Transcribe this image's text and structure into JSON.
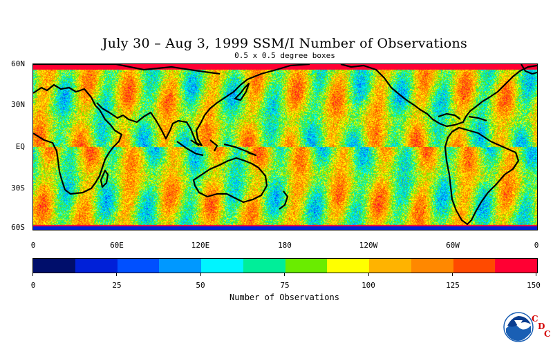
{
  "title": "July 30 – Aug 3, 1999 SSM/I Number of Observations",
  "subtitle": "0.5 x 0.5 degree boxes",
  "lat_labels": [
    "60N",
    "30N",
    "EQ",
    "30S",
    "60S"
  ],
  "lon_labels": [
    "0",
    "60E",
    "120E",
    "180",
    "120W",
    "60W",
    "0"
  ],
  "colorbar": {
    "title": "Number of Observations",
    "labels": [
      "0",
      "25",
      "50",
      "75",
      "100",
      "125",
      "150"
    ],
    "colors": [
      "#000e6b",
      "#0020d8",
      "#0050ff",
      "#0098ff",
      "#00f4ff",
      "#00ee99",
      "#6aec00",
      "#ffff00",
      "#ffb300",
      "#ff8800",
      "#ff4a00",
      "#ff0033"
    ]
  },
  "logo": {
    "name": "NOAA",
    "letters": [
      "C",
      "D",
      "C"
    ]
  },
  "chart_data": {
    "type": "heatmap",
    "title": "July 30 – Aug 3, 1999 SSM/I Number of Observations",
    "subtitle": "0.5 x 0.5 degree boxes",
    "xlabel": "",
    "ylabel": "",
    "x_ticks": [
      "0",
      "60E",
      "120E",
      "180",
      "120W",
      "60W",
      "0"
    ],
    "y_ticks": [
      "60N",
      "30N",
      "EQ",
      "30S",
      "60S"
    ],
    "lon_range": [
      0,
      360
    ],
    "lat_range": [
      -60,
      60
    ],
    "colorbar_label": "Number of Observations",
    "value_range": [
      0,
      150
    ]
  }
}
